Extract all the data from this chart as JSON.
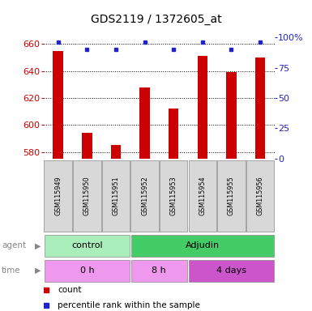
{
  "title": "GDS2119 / 1372605_at",
  "samples": [
    "GSM115949",
    "GSM115950",
    "GSM115951",
    "GSM115952",
    "GSM115953",
    "GSM115954",
    "GSM115955",
    "GSM115956"
  ],
  "bar_values": [
    655,
    594,
    585,
    628,
    612,
    651,
    639,
    650
  ],
  "percentile_values": [
    96,
    90,
    90,
    96,
    90,
    96,
    90,
    96
  ],
  "ylim_left": [
    575,
    665
  ],
  "ylim_right": [
    0,
    100
  ],
  "yticks_left": [
    580,
    600,
    620,
    640,
    660
  ],
  "yticks_right": [
    0,
    25,
    50,
    75,
    100
  ],
  "bar_color": "#cc0000",
  "dot_color": "#2222cc",
  "bar_bottom": 575,
  "agent_groups": [
    {
      "label": "control",
      "start": 0,
      "end": 3,
      "color": "#aaeebb"
    },
    {
      "label": "Adjudin",
      "start": 3,
      "end": 8,
      "color": "#44cc66"
    }
  ],
  "time_groups": [
    {
      "label": "0 h",
      "start": 0,
      "end": 3,
      "color": "#ee99ee"
    },
    {
      "label": "8 h",
      "start": 3,
      "end": 5,
      "color": "#ee99ee"
    },
    {
      "label": "4 days",
      "start": 5,
      "end": 8,
      "color": "#cc55cc"
    }
  ],
  "legend_count_color": "#cc0000",
  "legend_dot_color": "#2222cc"
}
